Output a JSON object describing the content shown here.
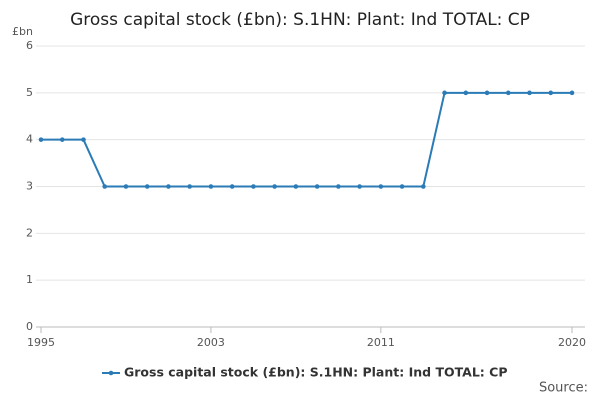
{
  "chart_data": {
    "type": "line",
    "title": "Gross capital stock (£bn): S.1HN: Plant: Ind TOTAL: CP",
    "y_label": "£bn",
    "source": "Source:",
    "x": [
      1995,
      1996,
      1997,
      1998,
      1999,
      2000,
      2001,
      2002,
      2003,
      2004,
      2005,
      2006,
      2007,
      2008,
      2009,
      2010,
      2011,
      2012,
      2013,
      2014,
      2015,
      2016,
      2017,
      2018,
      2019,
      2020
    ],
    "series": [
      {
        "name": "Gross capital stock (£bn): S.1HN: Plant: Ind TOTAL: CP",
        "color": "#2b7bb6",
        "values": [
          4,
          4,
          4,
          3,
          3,
          3,
          3,
          3,
          3,
          3,
          3,
          3,
          3,
          3,
          3,
          3,
          3,
          3,
          3,
          5,
          5,
          5,
          5,
          5,
          5,
          5
        ]
      }
    ],
    "xlim": [
      1995,
      2020
    ],
    "xticks": [
      1995,
      2003,
      2011,
      2020
    ],
    "ylim": [
      0,
      6
    ],
    "yticks": [
      0,
      1,
      2,
      3,
      4,
      5,
      6
    ],
    "grid": true
  }
}
